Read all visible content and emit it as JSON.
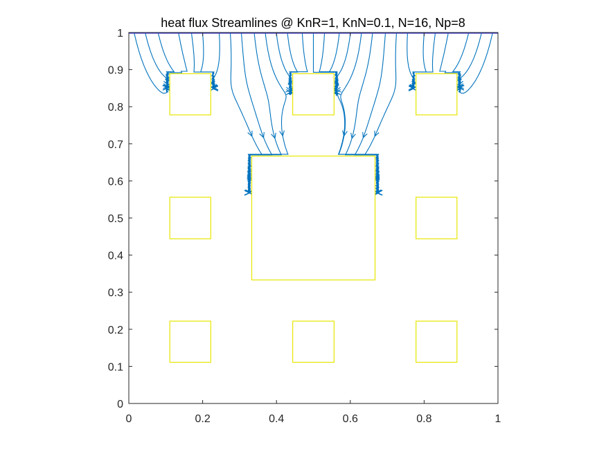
{
  "chart_data": {
    "type": "streamline",
    "title": "heat flux Streamlines @ KnR=1, KnN=0.1, N=16, Np=8",
    "xlabel": "",
    "ylabel": "",
    "xlim": [
      0,
      1
    ],
    "ylim": [
      0,
      1
    ],
    "xticks": [
      0,
      0.2,
      0.4,
      0.6,
      0.8,
      1
    ],
    "xtick_labels": [
      "0",
      "0.2",
      "0.4",
      "0.6",
      "0.8",
      "1"
    ],
    "yticks": [
      0,
      0.1,
      0.2,
      0.3,
      0.4,
      0.5,
      0.6,
      0.7,
      0.8,
      0.9,
      1
    ],
    "ytick_labels": [
      "0",
      "0.1",
      "0.2",
      "0.3",
      "0.4",
      "0.5",
      "0.6",
      "0.7",
      "0.8",
      "0.9",
      "1"
    ],
    "grid": false,
    "flow_direction": "top-to-bottom",
    "streamline_color": "#0072BD",
    "obstacle_color": "#E6E600",
    "boundary_line_color": "#3B3BD6",
    "obstacles": [
      {
        "x": [
          0.111,
          0.222
        ],
        "y": [
          0.778,
          0.889
        ]
      },
      {
        "x": [
          0.444,
          0.556
        ],
        "y": [
          0.778,
          0.889
        ]
      },
      {
        "x": [
          0.778,
          0.889
        ],
        "y": [
          0.778,
          0.889
        ]
      },
      {
        "x": [
          0.111,
          0.222
        ],
        "y": [
          0.444,
          0.556
        ]
      },
      {
        "x": [
          0.333,
          0.667
        ],
        "y": [
          0.333,
          0.667
        ]
      },
      {
        "x": [
          0.778,
          0.889
        ],
        "y": [
          0.444,
          0.556
        ]
      },
      {
        "x": [
          0.111,
          0.222
        ],
        "y": [
          0.111,
          0.222
        ]
      },
      {
        "x": [
          0.444,
          0.556
        ],
        "y": [
          0.111,
          0.222
        ]
      },
      {
        "x": [
          0.778,
          0.889
        ],
        "y": [
          0.111,
          0.222
        ]
      }
    ],
    "streamline_seeds_x": [
      0.015,
      0.045,
      0.08,
      0.135,
      0.17,
      0.2,
      0.245,
      0.275,
      0.305,
      0.34,
      0.37,
      0.4,
      0.43,
      0.47,
      0.5,
      0.53,
      0.57,
      0.6,
      0.63,
      0.66,
      0.695,
      0.725,
      0.755,
      0.8,
      0.83,
      0.865,
      0.92,
      0.955,
      0.985
    ]
  }
}
